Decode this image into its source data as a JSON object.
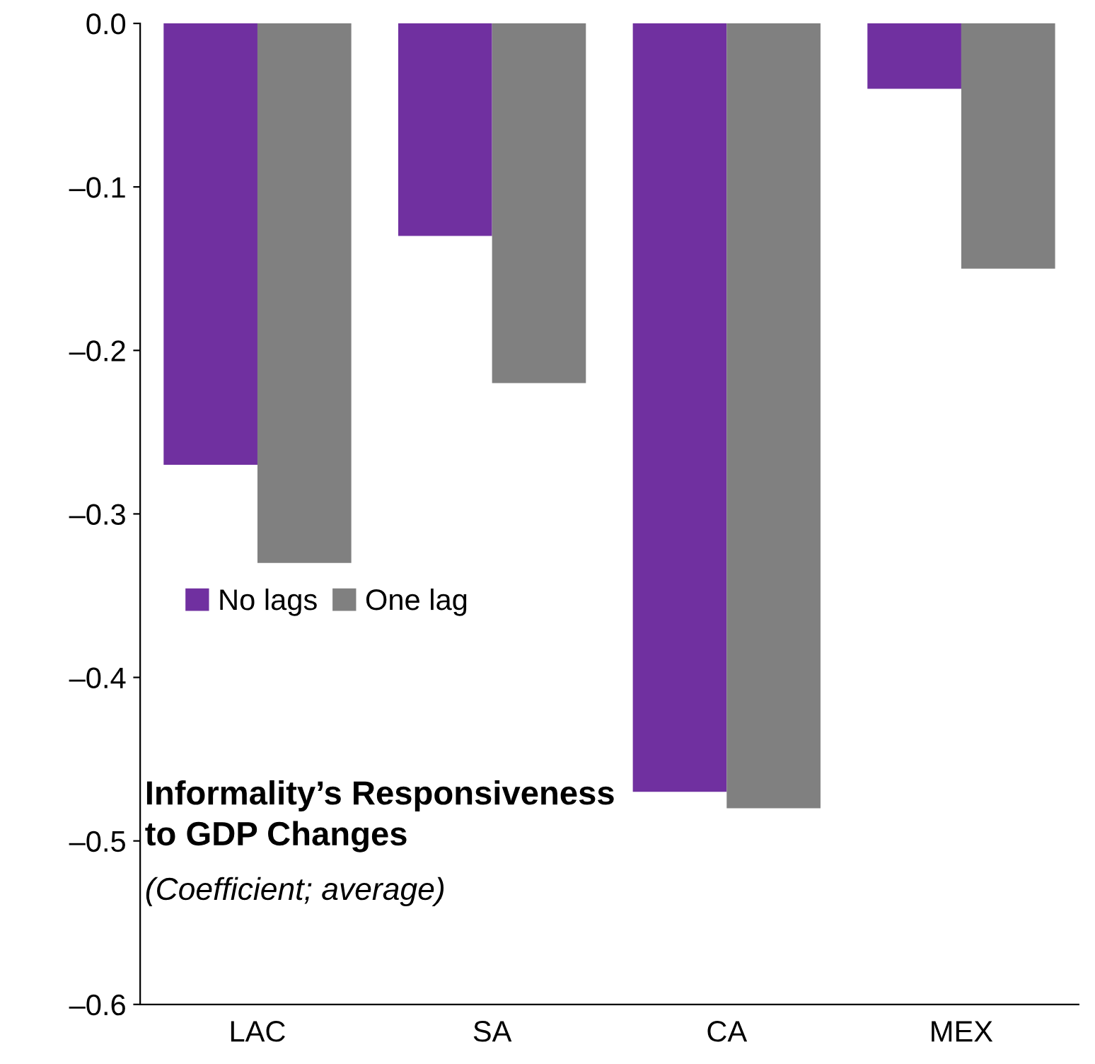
{
  "chart_data": {
    "type": "bar",
    "title": "Informality’s Responsiveness\nto GDP Changes",
    "subtitle": "(Coefficient; average)",
    "categories": [
      "LAC",
      "SA",
      "CA",
      "MEX"
    ],
    "series": [
      {
        "name": "No lags",
        "color": "#7030a0",
        "values": [
          -0.27,
          -0.13,
          -0.47,
          -0.04
        ]
      },
      {
        "name": "One lag",
        "color": "#808080",
        "values": [
          -0.33,
          -0.22,
          -0.48,
          -0.15
        ]
      }
    ],
    "ylim": [
      -0.6,
      0
    ],
    "yticks": [
      {
        "value": -0.6,
        "label": "–0.6"
      },
      {
        "value": -0.5,
        "label": "–0.5"
      },
      {
        "value": -0.4,
        "label": "–0.4"
      },
      {
        "value": -0.3,
        "label": "–0.3"
      },
      {
        "value": -0.2,
        "label": "–0.2"
      },
      {
        "value": -0.1,
        "label": "–0.1"
      },
      {
        "value": 0,
        "label": "0.0"
      }
    ],
    "grid": false,
    "legend": "center left"
  }
}
